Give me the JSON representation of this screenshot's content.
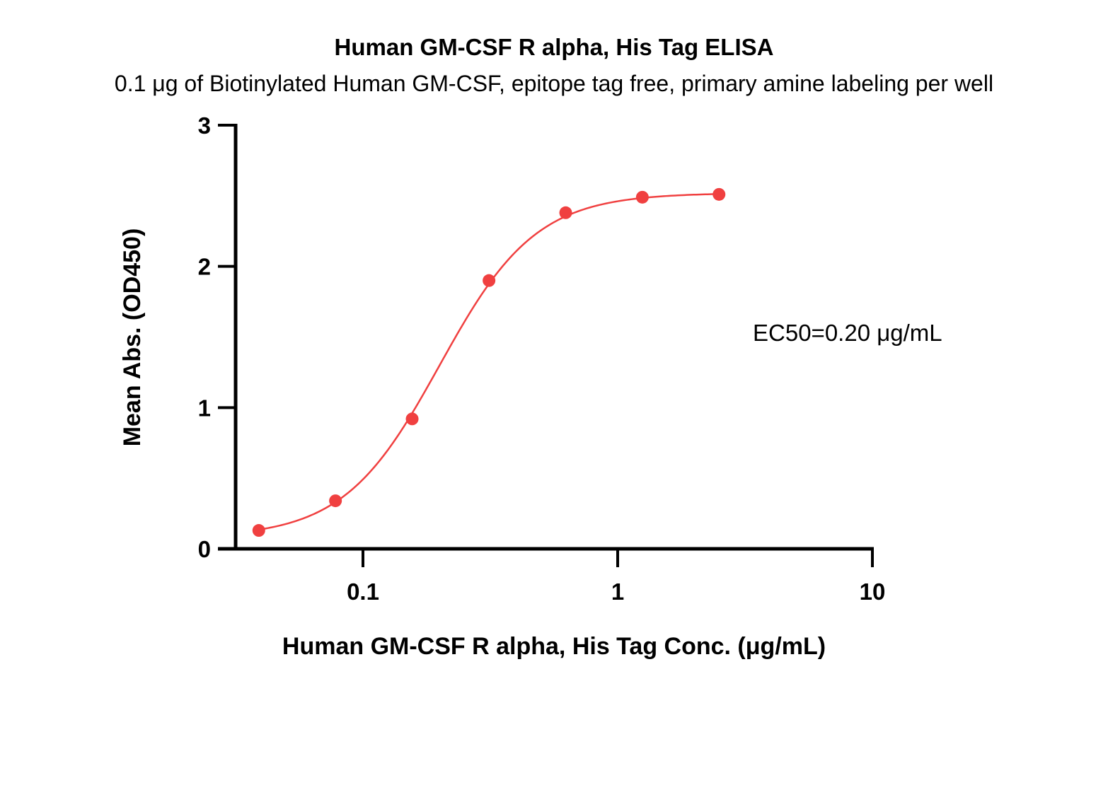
{
  "chart_data": {
    "type": "scatter",
    "title": "Human GM-CSF R alpha, His Tag ELISA",
    "subtitle": "0.1 μg of Biotinylated Human GM-CSF, epitope tag free, primary amine labeling per well",
    "xlabel": "Human GM-CSF R alpha, His Tag Conc. (μg/mL)",
    "ylabel": "Mean Abs. (OD450)",
    "x_scale": "log",
    "xlim": [
      0.031,
      10
    ],
    "ylim": [
      0,
      3
    ],
    "x_ticks": [
      0.1,
      1,
      10
    ],
    "x_tick_labels": [
      "0.1",
      "1",
      "10"
    ],
    "y_ticks": [
      0,
      1,
      2,
      3
    ],
    "y_tick_labels": [
      "0",
      "1",
      "2",
      "3"
    ],
    "grid": false,
    "legend": "none",
    "series": [
      {
        "color": "#f04040",
        "marker": "circle",
        "fit": "4PL sigmoid",
        "x": [
          0.039,
          0.078,
          0.156,
          0.3125,
          0.625,
          1.25,
          2.5
        ],
        "y": [
          0.13,
          0.34,
          0.92,
          1.9,
          2.38,
          2.49,
          2.51
        ]
      }
    ],
    "annotations": [
      {
        "text": "EC50=0.20 μg/mL"
      }
    ]
  }
}
